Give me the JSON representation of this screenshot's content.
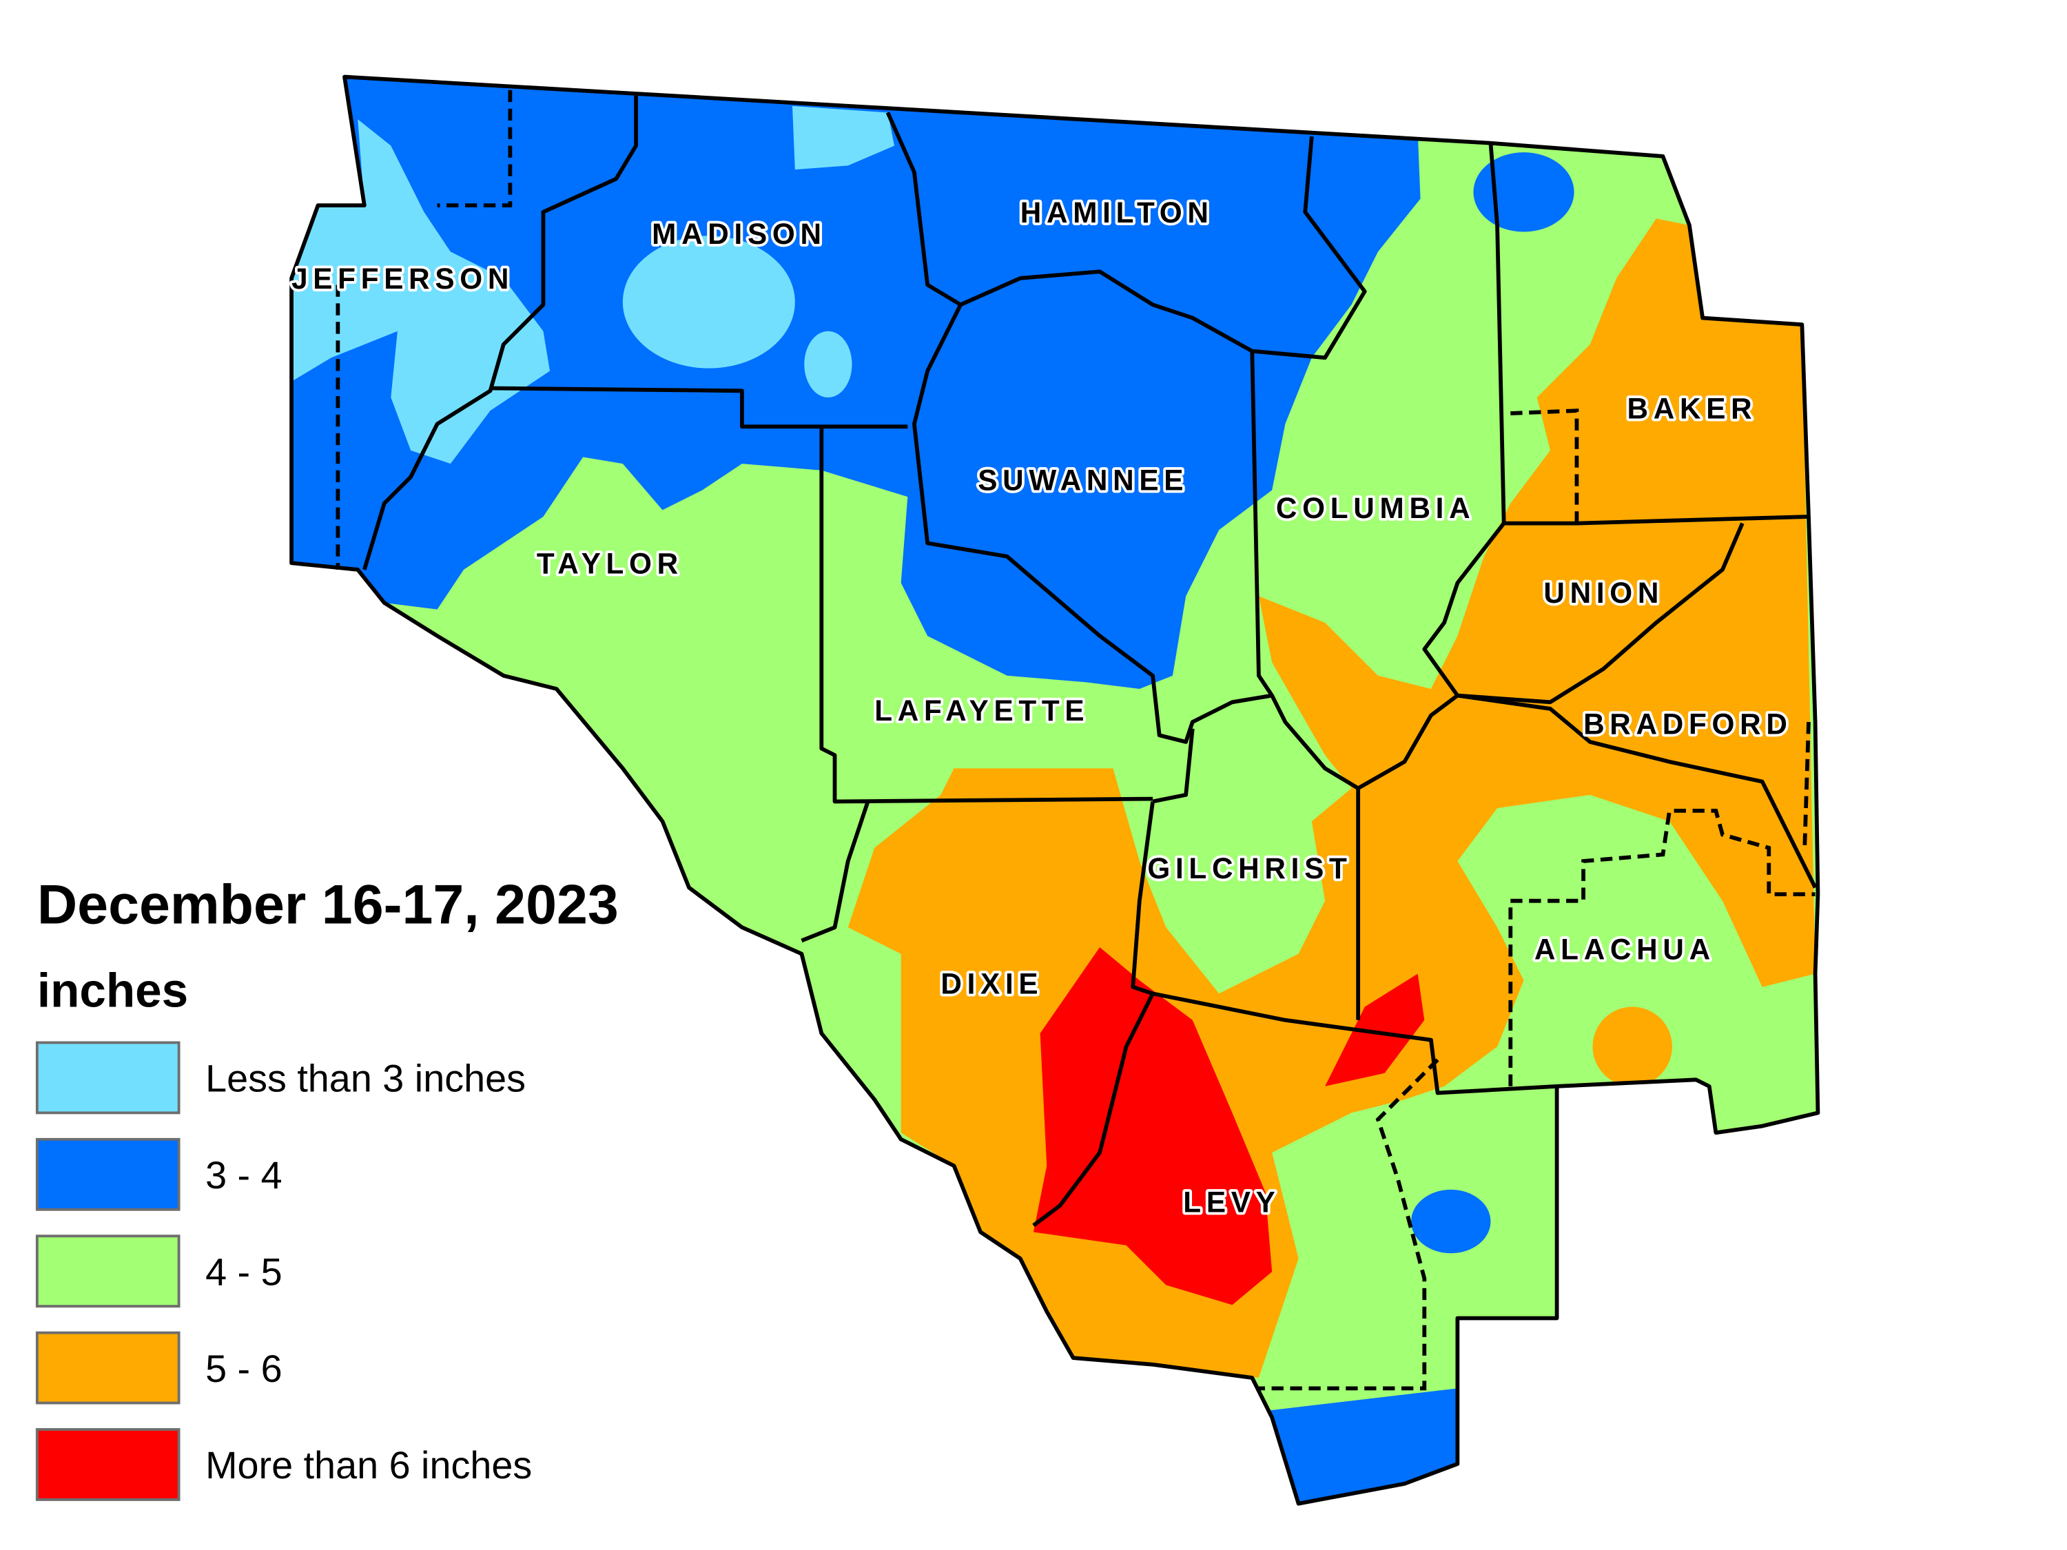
{
  "title": "December 16-17, 2023",
  "unit": "inches",
  "legend": [
    {
      "label": "Less than 3 inches",
      "color": "#73DFFF"
    },
    {
      "label": "3 - 4",
      "color": "#0070FF"
    },
    {
      "label": "4 - 5",
      "color": "#A3FF73"
    },
    {
      "label": "5 - 6",
      "color": "#FFAA00"
    },
    {
      "label": "More than 6 inches",
      "color": "#FF0000"
    }
  ],
  "counties": {
    "jefferson": "JEFFERSON",
    "madison": "MADISON",
    "hamilton": "HAMILTON",
    "suwannee": "SUWANNEE",
    "columbia": "COLUMBIA",
    "baker": "BAKER",
    "union": "UNION",
    "bradford": "BRADFORD",
    "taylor": "TAYLOR",
    "lafayette": "LAFAYETTE",
    "gilchrist": "GILCHRIST",
    "alachua": "ALACHUA",
    "dixie": "DIXIE",
    "levy": "LEVY"
  }
}
